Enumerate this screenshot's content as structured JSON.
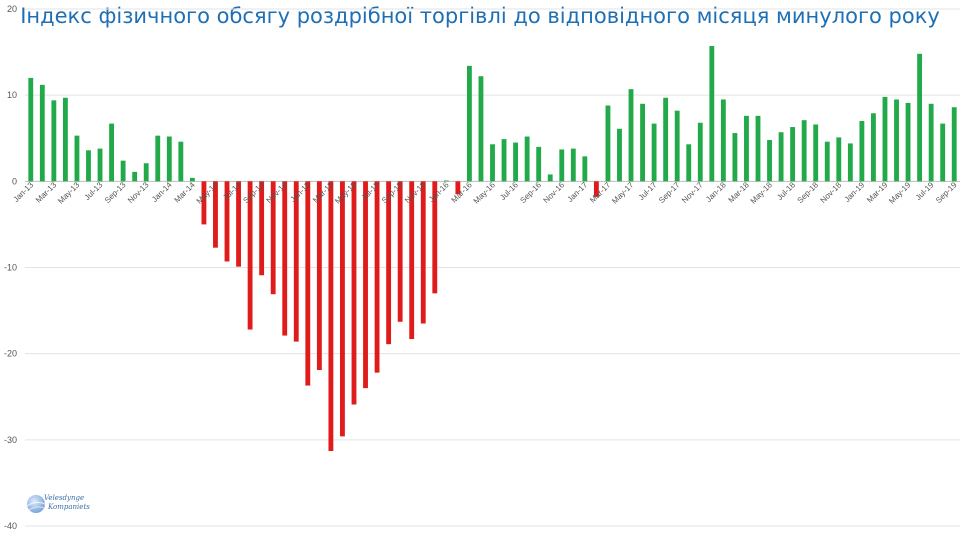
{
  "chart_data": {
    "type": "bar",
    "title": "Індекс фізичного обсягу роздрібної торгівлі до відповідного місяця минулого року",
    "xlabel": "",
    "ylabel": "",
    "ylim": [
      -40,
      20
    ],
    "yticks": [
      20,
      10,
      0,
      -10,
      -20,
      -30,
      -40
    ],
    "grid": true,
    "legend": "none",
    "colors": {
      "positive": "#22aa4a",
      "negative": "#e01b1b"
    },
    "categories": [
      "Jan-13",
      "Feb-13",
      "Mar-13",
      "Apr-13",
      "May-13",
      "Jun-13",
      "Jul-13",
      "Aug-13",
      "Sep-13",
      "Oct-13",
      "Nov-13",
      "Dec-13",
      "Jan-14",
      "Feb-14",
      "Mar-14",
      "Apr-14",
      "May-14",
      "Jun-14",
      "Jul-14",
      "Aug-14",
      "Sep-14",
      "Oct-14",
      "Nov-14",
      "Dec-14",
      "Jan-15",
      "Feb-15",
      "Mar-15",
      "Apr-15",
      "May-15",
      "Jun-15",
      "Jul-15",
      "Aug-15",
      "Sep-15",
      "Oct-15",
      "Nov-15",
      "Dec-15",
      "Jan-16",
      "Feb-16",
      "Mar-16",
      "Apr-16",
      "May-16",
      "Jun-16",
      "Jul-16",
      "Aug-16",
      "Sep-16",
      "Oct-16",
      "Nov-16",
      "Dec-16",
      "Jan-17",
      "Feb-17",
      "Mar-17",
      "Apr-17",
      "May-17",
      "Jun-17",
      "Jul-17",
      "Aug-17",
      "Sep-17",
      "Oct-17",
      "Nov-17",
      "Dec-17",
      "Jan-18",
      "Feb-18",
      "Mar-18",
      "Apr-18",
      "May-18",
      "Jun-18",
      "Jul-18",
      "Aug-18",
      "Sep-18",
      "Oct-18",
      "Nov-18",
      "Dec-18",
      "Jan-19",
      "Feb-19",
      "Mar-19",
      "Apr-19",
      "May-19",
      "Jun-19",
      "Jul-19",
      "Aug-19",
      "Sep-19"
    ],
    "xtick_labels": [
      "Jan-13",
      "Mar-13",
      "May-13",
      "Jul-13",
      "Sep-13",
      "Nov-13",
      "Jan-14",
      "Mar-14",
      "May-14",
      "Jul-14",
      "Sep-14",
      "Nov-14",
      "Jan-15",
      "Mar-15",
      "May-15",
      "Jul-15",
      "Sep-15",
      "Nov-15",
      "Jan-16",
      "Mar-16",
      "May-16",
      "Jul-16",
      "Sep-16",
      "Nov-16",
      "Jan-17",
      "Mar-17",
      "May-17",
      "Jul-17",
      "Sep-17",
      "Nov-17",
      "Jan-18",
      "Mar-18",
      "May-18",
      "Jul-18",
      "Sep-18",
      "Nov-18",
      "Jan-19",
      "Mar-19",
      "May-19",
      "Jul-19",
      "Sep-19"
    ],
    "values": [
      12.0,
      11.2,
      9.4,
      9.7,
      5.3,
      3.6,
      3.8,
      6.7,
      2.4,
      1.1,
      2.1,
      5.3,
      5.2,
      4.6,
      0.4,
      -5.0,
      -7.7,
      -9.3,
      -9.9,
      -17.2,
      -10.9,
      -13.1,
      -17.9,
      -18.6,
      -23.7,
      -21.9,
      -31.3,
      -29.6,
      -25.9,
      -24.0,
      -22.2,
      -18.9,
      -16.3,
      -18.3,
      -16.5,
      -13.0,
      0.1,
      -1.5,
      13.4,
      12.2,
      4.3,
      4.9,
      4.5,
      5.2,
      4.0,
      0.8,
      3.7,
      3.8,
      2.9,
      -1.8,
      8.8,
      6.1,
      10.7,
      9.0,
      6.7,
      9.7,
      8.2,
      4.3,
      6.8,
      15.7,
      9.5,
      5.6,
      7.6,
      7.6,
      4.8,
      5.7,
      6.3,
      7.1,
      6.6,
      4.6,
      5.1,
      4.4,
      7.0,
      7.9,
      9.8,
      9.5,
      9.1,
      14.8,
      9.0,
      6.7,
      8.6
    ]
  },
  "logo": {
    "line1": "Velesdynge",
    "line2": "Kompaniets"
  }
}
